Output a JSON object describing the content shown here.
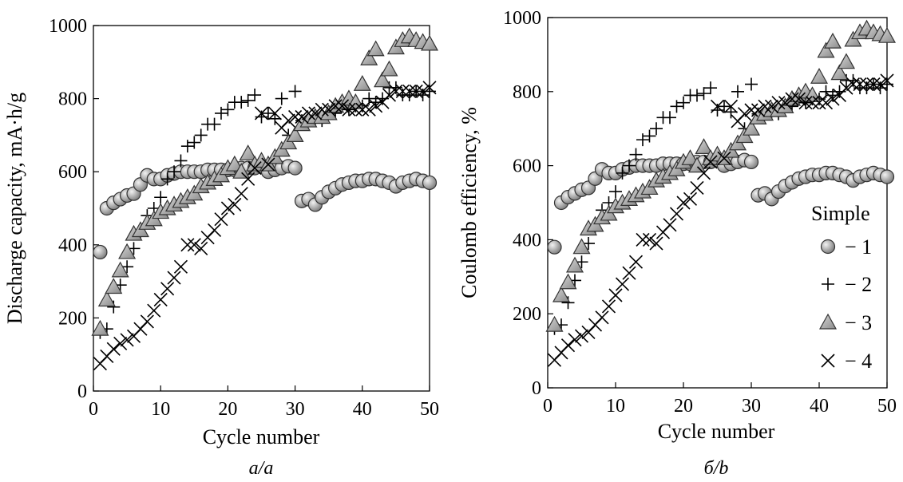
{
  "chart_data": [
    {
      "type": "scatter",
      "caption": "а/a",
      "xlabel": "Cycle number",
      "ylabel": "Discharge capacity, mA·h/g",
      "xlim": [
        0,
        50
      ],
      "ylim": [
        0,
        1000
      ],
      "xticks": [
        "0",
        "10",
        "20",
        "30",
        "40",
        "50"
      ],
      "yticks": [
        "0",
        "200",
        "400",
        "600",
        "800",
        "1000"
      ],
      "legend": null,
      "series": [
        {
          "name": "1",
          "marker": "circle",
          "x": [
            1,
            2,
            3,
            4,
            5,
            6,
            7,
            8,
            9,
            10,
            11,
            12,
            13,
            14,
            15,
            16,
            17,
            18,
            19,
            20,
            21,
            22,
            23,
            24,
            25,
            26,
            27,
            28,
            29,
            30,
            31,
            32,
            33,
            34,
            35,
            36,
            37,
            38,
            39,
            40,
            41,
            42,
            43,
            44,
            45,
            46,
            47,
            48,
            49,
            50
          ],
          "y": [
            380,
            500,
            515,
            525,
            535,
            540,
            565,
            590,
            580,
            580,
            590,
            595,
            600,
            600,
            600,
            600,
            605,
            605,
            605,
            605,
            605,
            610,
            610,
            610,
            615,
            600,
            605,
            610,
            615,
            610,
            520,
            525,
            510,
            530,
            545,
            555,
            565,
            570,
            575,
            575,
            580,
            580,
            575,
            570,
            560,
            570,
            575,
            580,
            575,
            570
          ]
        },
        {
          "name": "2",
          "marker": "plus",
          "x": [
            1,
            2,
            3,
            4,
            5,
            6,
            7,
            8,
            9,
            10,
            11,
            12,
            13,
            14,
            15,
            16,
            17,
            18,
            19,
            20,
            21,
            22,
            23,
            24,
            25,
            26,
            27,
            28,
            29,
            30,
            31,
            32,
            33,
            34,
            35,
            36,
            37,
            38,
            39,
            40,
            41,
            42,
            43,
            44,
            45,
            46,
            47,
            48,
            49,
            50
          ],
          "y": [
            160,
            170,
            230,
            290,
            340,
            390,
            430,
            480,
            500,
            530,
            580,
            600,
            630,
            670,
            680,
            700,
            730,
            730,
            760,
            770,
            790,
            790,
            795,
            810,
            750,
            760,
            745,
            800,
            700,
            820,
            740,
            745,
            740,
            740,
            760,
            760,
            780,
            770,
            780,
            780,
            800,
            790,
            800,
            830,
            830,
            810,
            810,
            820,
            810,
            820
          ]
        },
        {
          "name": "3",
          "marker": "triangle",
          "x": [
            1,
            2,
            3,
            4,
            5,
            6,
            7,
            8,
            9,
            10,
            11,
            12,
            13,
            14,
            15,
            16,
            17,
            18,
            19,
            20,
            21,
            22,
            23,
            24,
            25,
            26,
            27,
            28,
            29,
            30,
            31,
            32,
            33,
            34,
            35,
            36,
            37,
            38,
            39,
            40,
            41,
            42,
            43,
            44,
            45,
            46,
            47,
            48,
            49,
            50
          ],
          "y": [
            170,
            250,
            285,
            330,
            380,
            430,
            440,
            460,
            470,
            490,
            500,
            510,
            520,
            530,
            540,
            560,
            570,
            580,
            590,
            610,
            620,
            600,
            650,
            620,
            630,
            620,
            640,
            660,
            680,
            700,
            730,
            740,
            750,
            750,
            760,
            780,
            790,
            800,
            790,
            840,
            910,
            935,
            850,
            880,
            940,
            960,
            970,
            960,
            955,
            950
          ]
        },
        {
          "name": "4",
          "marker": "x",
          "x": [
            1,
            2,
            3,
            4,
            5,
            6,
            7,
            8,
            9,
            10,
            11,
            12,
            13,
            14,
            15,
            16,
            17,
            18,
            19,
            20,
            21,
            22,
            23,
            24,
            25,
            26,
            27,
            28,
            29,
            30,
            31,
            32,
            33,
            34,
            35,
            36,
            37,
            38,
            39,
            40,
            41,
            42,
            43,
            44,
            45,
            46,
            47,
            48,
            49,
            50
          ],
          "y": [
            75,
            95,
            115,
            130,
            140,
            150,
            170,
            190,
            220,
            250,
            280,
            310,
            340,
            400,
            400,
            390,
            420,
            440,
            470,
            500,
            510,
            540,
            580,
            610,
            760,
            620,
            760,
            720,
            740,
            750,
            750,
            760,
            760,
            770,
            770,
            780,
            780,
            770,
            770,
            770,
            770,
            780,
            790,
            810,
            820,
            820,
            820,
            820,
            820,
            830
          ]
        }
      ]
    },
    {
      "type": "scatter",
      "caption": "б/b",
      "xlabel": "Cycle number",
      "ylabel": "Coulomb efficiency, %",
      "xlim": [
        0,
        50
      ],
      "ylim": [
        0,
        1000
      ],
      "xticks": [
        "0",
        "10",
        "20",
        "30",
        "40",
        "50"
      ],
      "yticks": [
        "0",
        "200",
        "400",
        "600",
        "800",
        "1000"
      ],
      "legend": {
        "title": "Simple",
        "position": "lower-right",
        "entries": [
          "− 1",
          "− 2",
          "− 3",
          "− 4"
        ]
      },
      "series": [
        {
          "name": "1",
          "marker": "circle",
          "x": [
            1,
            2,
            3,
            4,
            5,
            6,
            7,
            8,
            9,
            10,
            11,
            12,
            13,
            14,
            15,
            16,
            17,
            18,
            19,
            20,
            21,
            22,
            23,
            24,
            25,
            26,
            27,
            28,
            29,
            30,
            31,
            32,
            33,
            34,
            35,
            36,
            37,
            38,
            39,
            40,
            41,
            42,
            43,
            44,
            45,
            46,
            47,
            48,
            49,
            50
          ],
          "y": [
            380,
            500,
            515,
            525,
            535,
            540,
            565,
            590,
            580,
            580,
            590,
            595,
            600,
            600,
            600,
            600,
            605,
            605,
            605,
            605,
            605,
            610,
            610,
            610,
            615,
            600,
            605,
            610,
            615,
            610,
            520,
            525,
            510,
            530,
            545,
            555,
            565,
            570,
            575,
            575,
            580,
            580,
            575,
            570,
            560,
            570,
            575,
            580,
            575,
            570
          ]
        },
        {
          "name": "2",
          "marker": "plus",
          "x": [
            1,
            2,
            3,
            4,
            5,
            6,
            7,
            8,
            9,
            10,
            11,
            12,
            13,
            14,
            15,
            16,
            17,
            18,
            19,
            20,
            21,
            22,
            23,
            24,
            25,
            26,
            27,
            28,
            29,
            30,
            31,
            32,
            33,
            34,
            35,
            36,
            37,
            38,
            39,
            40,
            41,
            42,
            43,
            44,
            45,
            46,
            47,
            48,
            49,
            50
          ],
          "y": [
            160,
            170,
            230,
            290,
            340,
            390,
            430,
            480,
            500,
            530,
            580,
            600,
            630,
            670,
            680,
            700,
            730,
            730,
            760,
            770,
            790,
            790,
            795,
            810,
            750,
            760,
            745,
            800,
            700,
            820,
            740,
            745,
            740,
            740,
            760,
            760,
            780,
            770,
            780,
            780,
            800,
            790,
            800,
            830,
            830,
            810,
            810,
            820,
            810,
            820
          ]
        },
        {
          "name": "3",
          "marker": "triangle",
          "x": [
            1,
            2,
            3,
            4,
            5,
            6,
            7,
            8,
            9,
            10,
            11,
            12,
            13,
            14,
            15,
            16,
            17,
            18,
            19,
            20,
            21,
            22,
            23,
            24,
            25,
            26,
            27,
            28,
            29,
            30,
            31,
            32,
            33,
            34,
            35,
            36,
            37,
            38,
            39,
            40,
            41,
            42,
            43,
            44,
            45,
            46,
            47,
            48,
            49,
            50
          ],
          "y": [
            170,
            250,
            285,
            330,
            380,
            430,
            440,
            460,
            470,
            490,
            500,
            510,
            520,
            530,
            540,
            560,
            570,
            580,
            590,
            610,
            620,
            600,
            650,
            620,
            630,
            620,
            640,
            660,
            680,
            700,
            730,
            740,
            750,
            750,
            760,
            780,
            790,
            800,
            790,
            840,
            910,
            935,
            850,
            880,
            940,
            960,
            970,
            960,
            955,
            950
          ]
        },
        {
          "name": "4",
          "marker": "x",
          "x": [
            1,
            2,
            3,
            4,
            5,
            6,
            7,
            8,
            9,
            10,
            11,
            12,
            13,
            14,
            15,
            16,
            17,
            18,
            19,
            20,
            21,
            22,
            23,
            24,
            25,
            26,
            27,
            28,
            29,
            30,
            31,
            32,
            33,
            34,
            35,
            36,
            37,
            38,
            39,
            40,
            41,
            42,
            43,
            44,
            45,
            46,
            47,
            48,
            49,
            50
          ],
          "y": [
            75,
            95,
            115,
            130,
            140,
            150,
            170,
            190,
            220,
            250,
            280,
            310,
            340,
            400,
            400,
            390,
            420,
            440,
            470,
            500,
            510,
            540,
            580,
            610,
            760,
            620,
            760,
            720,
            740,
            750,
            750,
            760,
            760,
            770,
            770,
            780,
            780,
            770,
            770,
            770,
            770,
            780,
            790,
            810,
            820,
            820,
            820,
            820,
            820,
            830
          ]
        }
      ]
    }
  ]
}
